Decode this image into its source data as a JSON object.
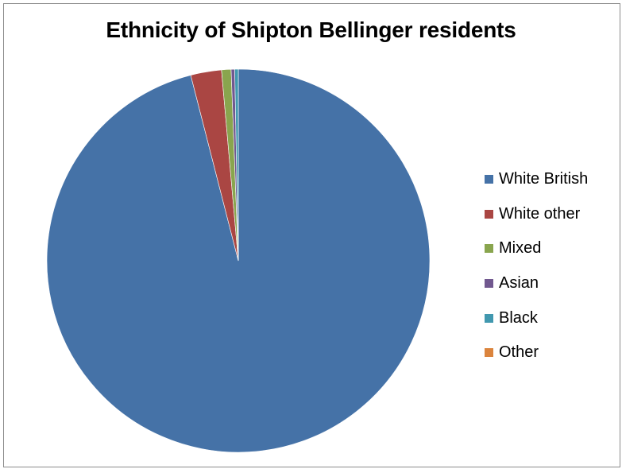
{
  "chart_data": {
    "type": "pie",
    "title": "Ethnicity of Shipton Bellinger residents",
    "legend_position": "right",
    "categories": [
      "White British",
      "White other",
      "Mixed",
      "Asian",
      "Black",
      "Other"
    ],
    "values": [
      96.0,
      2.6,
      0.8,
      0.3,
      0.3,
      0.0
    ],
    "colors": [
      "#4572a7",
      "#aa4643",
      "#89a54e",
      "#71588f",
      "#4198af",
      "#db843d"
    ],
    "start_angle": "12 o'clock",
    "direction": "clockwise"
  }
}
